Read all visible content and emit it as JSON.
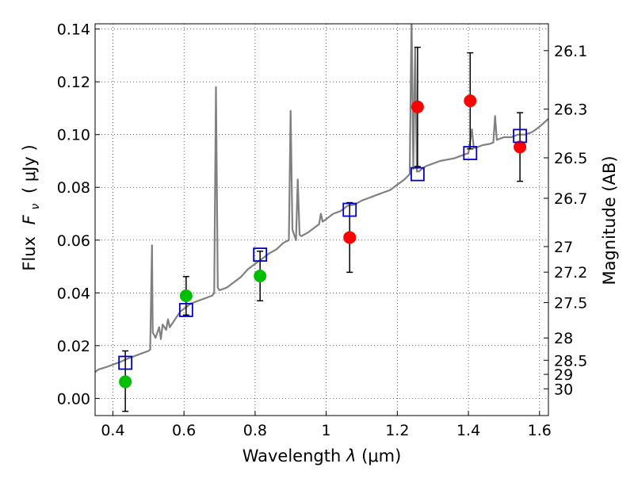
{
  "chart_data": {
    "type": "scatter",
    "xlabel_prefix": "Wavelength",
    "xlabel_symbol": "λ",
    "xlabel_unit": "(μm)",
    "ylabel_prefix": "Flux",
    "ylabel_symbol": "F",
    "ylabel_subscript": "ν",
    "ylabel_unit": "( μJy )",
    "y2label": "Magnitude (AB)",
    "xlim": [
      0.35,
      1.625
    ],
    "ylim": [
      -0.0065,
      0.142
    ],
    "grid": true,
    "x_ticks": [
      {
        "v": 0.4,
        "label": "0.4"
      },
      {
        "v": 0.6,
        "label": "0.6"
      },
      {
        "v": 0.8,
        "label": "0.8"
      },
      {
        "v": 1.0,
        "label": "1"
      },
      {
        "v": 1.2,
        "label": "1.2"
      },
      {
        "v": 1.4,
        "label": "1.4"
      },
      {
        "v": 1.6,
        "label": "1.6"
      }
    ],
    "y_ticks": [
      {
        "v": 0.0,
        "label": "0.00"
      },
      {
        "v": 0.02,
        "label": "0.02"
      },
      {
        "v": 0.04,
        "label": "0.04"
      },
      {
        "v": 0.06,
        "label": "0.06"
      },
      {
        "v": 0.08,
        "label": "0.08"
      },
      {
        "v": 0.1,
        "label": "0.10"
      },
      {
        "v": 0.12,
        "label": "0.12"
      },
      {
        "v": 0.14,
        "label": "0.14"
      }
    ],
    "mag_ticks": [
      {
        "v": 26.1,
        "label": "26.1"
      },
      {
        "v": 26.3,
        "label": "26.3"
      },
      {
        "v": 26.5,
        "label": "26.5"
      },
      {
        "v": 26.7,
        "label": "26.7"
      },
      {
        "v": 27.0,
        "label": "27"
      },
      {
        "v": 27.2,
        "label": "27.2"
      },
      {
        "v": 27.5,
        "label": "27.5"
      },
      {
        "v": 28.0,
        "label": "28"
      },
      {
        "v": 28.5,
        "label": "28.5"
      },
      {
        "v": 29.0,
        "label": "29"
      },
      {
        "v": 30.0,
        "label": "30"
      }
    ],
    "model_spectrum": {
      "color": "#808080",
      "points": [
        [
          0.35,
          0.01
        ],
        [
          0.36,
          0.011
        ],
        [
          0.38,
          0.0118
        ],
        [
          0.4,
          0.0128
        ],
        [
          0.42,
          0.0138
        ],
        [
          0.44,
          0.015
        ],
        [
          0.46,
          0.016
        ],
        [
          0.48,
          0.017
        ],
        [
          0.5,
          0.018
        ],
        [
          0.505,
          0.0185
        ],
        [
          0.51,
          0.058
        ],
        [
          0.512,
          0.025
        ],
        [
          0.52,
          0.023
        ],
        [
          0.53,
          0.027
        ],
        [
          0.535,
          0.0225
        ],
        [
          0.54,
          0.028
        ],
        [
          0.55,
          0.026
        ],
        [
          0.555,
          0.03
        ],
        [
          0.56,
          0.027
        ],
        [
          0.57,
          0.029
        ],
        [
          0.58,
          0.031
        ],
        [
          0.59,
          0.033
        ],
        [
          0.6,
          0.034
        ],
        [
          0.62,
          0.036
        ],
        [
          0.64,
          0.037
        ],
        [
          0.66,
          0.038
        ],
        [
          0.68,
          0.039
        ],
        [
          0.685,
          0.04
        ],
        [
          0.69,
          0.118
        ],
        [
          0.695,
          0.042
        ],
        [
          0.7,
          0.041
        ],
        [
          0.72,
          0.042
        ],
        [
          0.74,
          0.044
        ],
        [
          0.76,
          0.046
        ],
        [
          0.78,
          0.049
        ],
        [
          0.8,
          0.051
        ],
        [
          0.82,
          0.053
        ],
        [
          0.84,
          0.055
        ],
        [
          0.86,
          0.0565
        ],
        [
          0.88,
          0.059
        ],
        [
          0.895,
          0.06
        ],
        [
          0.9,
          0.109
        ],
        [
          0.905,
          0.064
        ],
        [
          0.91,
          0.062
        ],
        [
          0.915,
          0.06
        ],
        [
          0.92,
          0.083
        ],
        [
          0.925,
          0.062
        ],
        [
          0.93,
          0.0615
        ],
        [
          0.95,
          0.063
        ],
        [
          0.97,
          0.065
        ],
        [
          0.98,
          0.066
        ],
        [
          0.985,
          0.07
        ],
        [
          0.99,
          0.067
        ],
        [
          1.0,
          0.068
        ],
        [
          1.02,
          0.07
        ],
        [
          1.04,
          0.071
        ],
        [
          1.06,
          0.073
        ],
        [
          1.08,
          0.0735
        ],
        [
          1.1,
          0.075
        ],
        [
          1.12,
          0.076
        ],
        [
          1.14,
          0.077
        ],
        [
          1.16,
          0.078
        ],
        [
          1.18,
          0.079
        ],
        [
          1.2,
          0.081
        ],
        [
          1.22,
          0.083
        ],
        [
          1.235,
          0.085
        ],
        [
          1.24,
          0.145
        ],
        [
          1.245,
          0.087
        ],
        [
          1.25,
          0.133
        ],
        [
          1.255,
          0.086
        ],
        [
          1.26,
          0.086
        ],
        [
          1.28,
          0.088
        ],
        [
          1.3,
          0.089
        ],
        [
          1.32,
          0.09
        ],
        [
          1.34,
          0.0905
        ],
        [
          1.36,
          0.091
        ],
        [
          1.38,
          0.092
        ],
        [
          1.4,
          0.093
        ],
        [
          1.41,
          0.102
        ],
        [
          1.415,
          0.095
        ],
        [
          1.42,
          0.095
        ],
        [
          1.44,
          0.096
        ],
        [
          1.46,
          0.0965
        ],
        [
          1.47,
          0.097
        ],
        [
          1.475,
          0.107
        ],
        [
          1.48,
          0.098
        ],
        [
          1.5,
          0.099
        ],
        [
          1.52,
          0.099
        ],
        [
          1.54,
          0.1
        ],
        [
          1.56,
          0.1
        ],
        [
          1.58,
          0.101
        ],
        [
          1.6,
          0.103
        ],
        [
          1.625,
          0.106
        ]
      ]
    },
    "series": [
      {
        "marker": "circle",
        "color": "#00bf00",
        "points": [
          {
            "x": 0.435,
            "y": 0.0063,
            "err_low": 0.0112,
            "err_high": 0.0117
          },
          {
            "x": 0.606,
            "y": 0.0389,
            "err_low": 0.0073,
            "err_high": 0.0073
          },
          {
            "x": 0.814,
            "y": 0.0464,
            "err_low": 0.0094,
            "err_high": 0.0094
          }
        ]
      },
      {
        "marker": "circle",
        "color": "#ff0000",
        "points": [
          {
            "x": 1.066,
            "y": 0.061,
            "err_low": 0.0132,
            "err_high": 0.0132
          },
          {
            "x": 1.257,
            "y": 0.1105,
            "err_low": 0.0226,
            "err_high": 0.0226
          },
          {
            "x": 1.405,
            "y": 0.1128,
            "err_low": 0.0182,
            "err_high": 0.0182
          },
          {
            "x": 1.545,
            "y": 0.0953,
            "err_low": 0.013,
            "err_high": 0.013
          }
        ]
      },
      {
        "marker": "open-square",
        "color": "#0000cc",
        "points": [
          {
            "x": 0.435,
            "y": 0.0135
          },
          {
            "x": 0.606,
            "y": 0.0335
          },
          {
            "x": 0.814,
            "y": 0.0545
          },
          {
            "x": 1.066,
            "y": 0.0715
          },
          {
            "x": 1.257,
            "y": 0.085
          },
          {
            "x": 1.405,
            "y": 0.093
          },
          {
            "x": 1.545,
            "y": 0.0995
          }
        ]
      }
    ]
  }
}
